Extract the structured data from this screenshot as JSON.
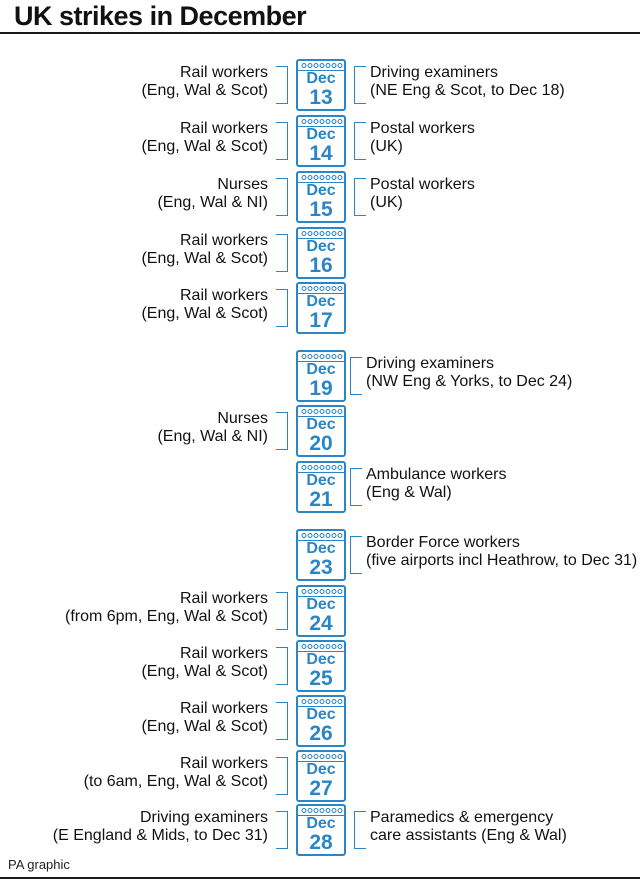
{
  "title": "UK strikes in December",
  "source": "PA graphic",
  "colors": {
    "accent": "#2a86c7",
    "text": "#111111",
    "rule": "#1a1a1a"
  },
  "icon": "calendar-icon",
  "days": [
    {
      "month": "Dec",
      "day": "13",
      "left": [
        "Rail workers",
        "(Eng, Wal & Scot)"
      ],
      "right": [
        "Driving examiners",
        "(NE Eng & Scot, to Dec 18)"
      ]
    },
    {
      "month": "Dec",
      "day": "14",
      "left": [
        "Rail workers",
        "(Eng, Wal & Scot)"
      ],
      "right": [
        "Postal workers",
        "(UK)"
      ]
    },
    {
      "month": "Dec",
      "day": "15",
      "left": [
        "Nurses",
        "(Eng, Wal & NI)"
      ],
      "right": [
        "Postal workers",
        "(UK)"
      ]
    },
    {
      "month": "Dec",
      "day": "16",
      "left": [
        "Rail workers",
        "(Eng, Wal & Scot)"
      ],
      "right": null
    },
    {
      "month": "Dec",
      "day": "17",
      "left": [
        "Rail workers",
        "(Eng, Wal & Scot)"
      ],
      "right": null
    },
    {
      "month": "Dec",
      "day": "19",
      "left": null,
      "right": [
        "Driving examiners",
        "(NW Eng & Yorks, to Dec 24)"
      ]
    },
    {
      "month": "Dec",
      "day": "20",
      "left": [
        "Nurses",
        "(Eng, Wal & NI)"
      ],
      "right": null
    },
    {
      "month": "Dec",
      "day": "21",
      "left": null,
      "right": [
        "Ambulance workers",
        "(Eng & Wal)"
      ]
    },
    {
      "month": "Dec",
      "day": "23",
      "left": null,
      "right": [
        "Border Force workers",
        "(five airports incl Heathrow, to Dec 31)"
      ]
    },
    {
      "month": "Dec",
      "day": "24",
      "left": [
        "Rail workers",
        "(from 6pm, Eng, Wal & Scot)"
      ],
      "right": null
    },
    {
      "month": "Dec",
      "day": "25",
      "left": [
        "Rail workers",
        "(Eng, Wal & Scot)"
      ],
      "right": null
    },
    {
      "month": "Dec",
      "day": "26",
      "left": [
        "Rail workers",
        "(Eng, Wal & Scot)"
      ],
      "right": null
    },
    {
      "month": "Dec",
      "day": "27",
      "left": [
        "Rail workers",
        "(to 6am, Eng, Wal & Scot)"
      ],
      "right": null
    },
    {
      "month": "Dec",
      "day": "28",
      "left": [
        "Driving examiners",
        "(E England & Mids, to Dec 31)"
      ],
      "right": [
        "Paramedics & emergency",
        "care assistants (Eng & Wal)"
      ]
    }
  ]
}
